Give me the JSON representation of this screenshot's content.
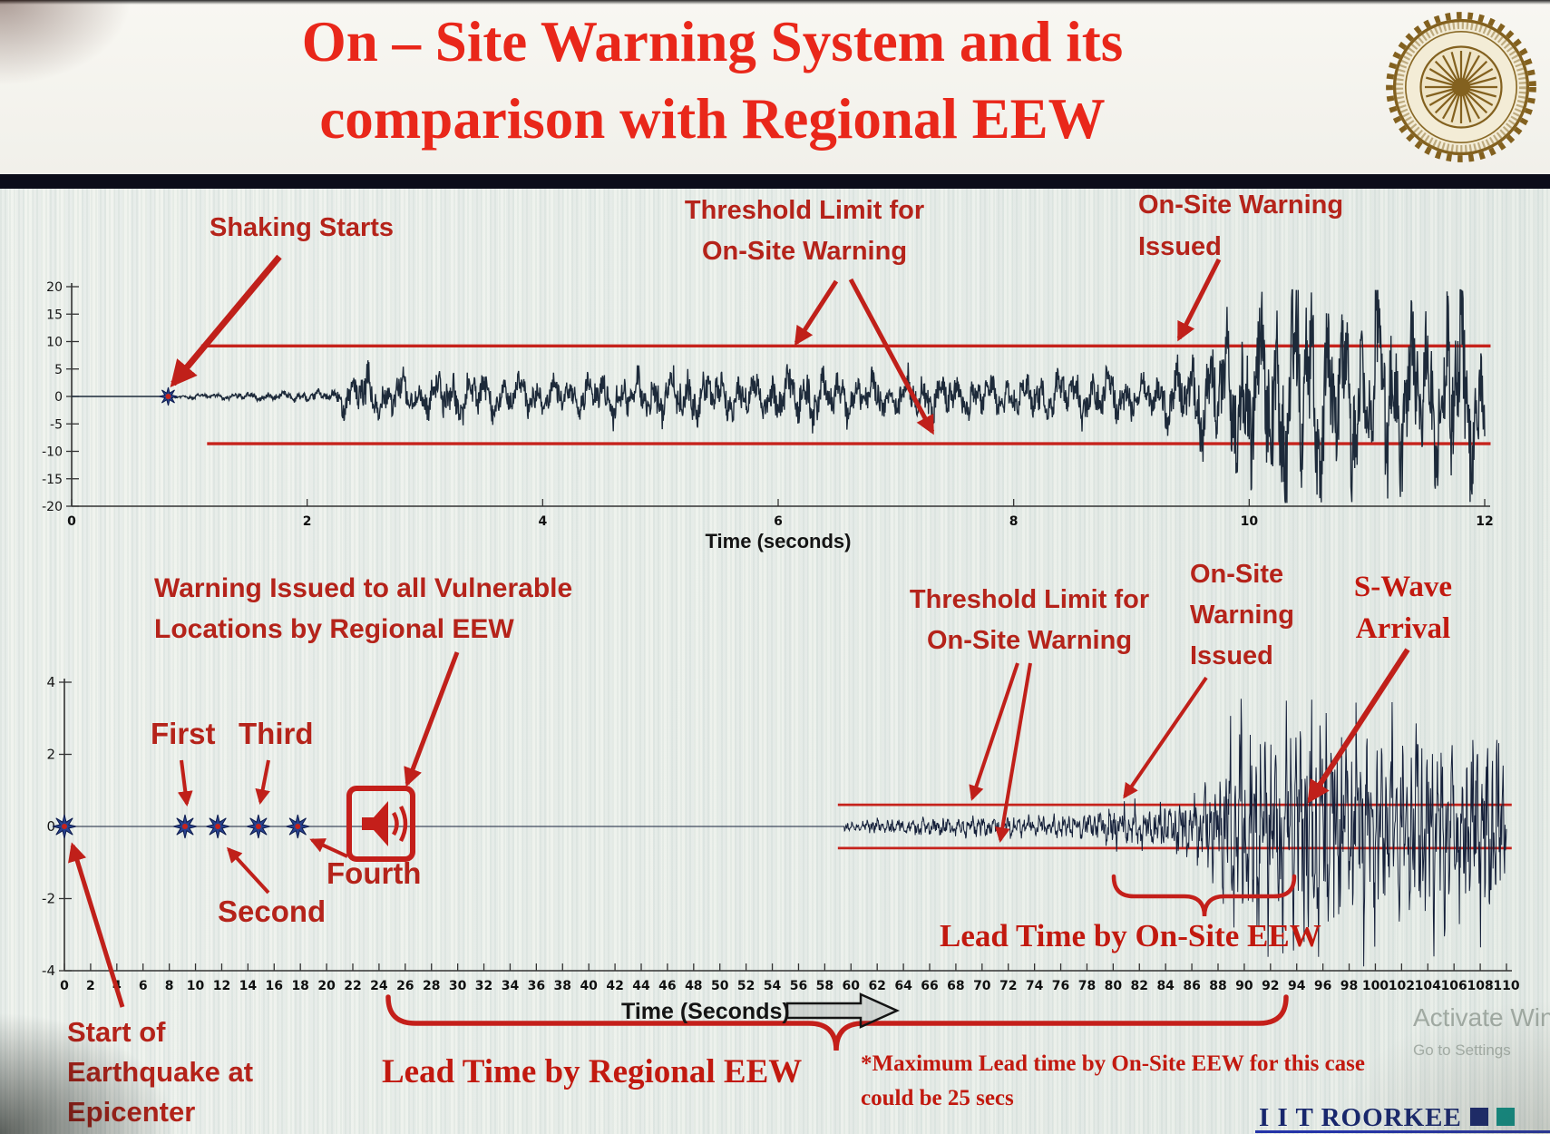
{
  "header": {
    "title_line1": "On – Site Warning System and its",
    "title_line2": "comparison with Regional EEW",
    "logo": "IIT Roorkee circular seal"
  },
  "colors": {
    "title_red": "#e9271a",
    "annotation_red": "#b5231a",
    "serif_red": "#c2190f",
    "threshold_red": "#c6231c",
    "trace_dark": "#1d2a3a",
    "marker_blue": "#26418e",
    "footer_navy": "#18276d",
    "footer_teal": "#0e8f86"
  },
  "top_chart": {
    "xlabel": "Time (seconds)",
    "annotations": {
      "shaking_starts": "Shaking Starts",
      "threshold_line1": "Threshold Limit for",
      "threshold_line2": "On-Site Warning",
      "warning_line1": "On-Site Warning",
      "warning_line2": "Issued"
    }
  },
  "bottom_chart": {
    "xlabel": "Time (Seconds)",
    "annotations": {
      "regional_line1": "Warning Issued to all Vulnerable",
      "regional_line2": "Locations by Regional EEW",
      "first": "First",
      "second": "Second",
      "third": "Third",
      "fourth": "Fourth",
      "threshold_line1": "Threshold Limit for",
      "threshold_line2": "On-Site Warning",
      "onsite_line1": "On-Site",
      "onsite_line2": "Warning",
      "onsite_line3": "Issued",
      "swave_line1": "S-Wave",
      "swave_line2": "Arrival",
      "lead_onsite": "Lead Time by On-Site EEW",
      "lead_regional": "Lead Time by Regional EEW",
      "max_lead_line1": "*Maximum Lead time by On-Site EEW for this case",
      "max_lead_line2": "could be 25 secs",
      "epicenter_line1": "Start of",
      "epicenter_line2": "Earthquake at",
      "epicenter_line3": "Epicenter"
    }
  },
  "footer": {
    "brand": "I I T ROORKEE",
    "watermark_line1": "Activate Win",
    "watermark_line2": "Go to Settings"
  },
  "chart_data": [
    {
      "type": "line",
      "title": "",
      "xlabel": "Time (seconds)",
      "ylabel": "",
      "xlim": [
        0,
        12
      ],
      "ylim": [
        -20,
        20
      ],
      "xticks": [
        0,
        2,
        4,
        6,
        8,
        10,
        12
      ],
      "yticks": [
        20,
        15,
        10,
        5,
        0,
        -5,
        -10,
        -15,
        -20
      ],
      "grid": false,
      "legend": false,
      "series": [
        {
          "name": "ground acceleration",
          "kind": "seismogram",
          "seed": 42,
          "base_freq": 7,
          "start_t": 0.82,
          "end_t": 12,
          "envelope": [
            [
              0.82,
              0.3
            ],
            [
              1.6,
              0.7
            ],
            [
              2.2,
              1.0
            ],
            [
              2.45,
              4.8
            ],
            [
              2.9,
              3.2
            ],
            [
              3.4,
              4.2
            ],
            [
              4.0,
              3.0
            ],
            [
              4.6,
              4.0
            ],
            [
              5.2,
              4.6
            ],
            [
              5.8,
              3.2
            ],
            [
              6.2,
              4.8
            ],
            [
              6.8,
              3.4
            ],
            [
              7.3,
              4.2
            ],
            [
              7.8,
              3.0
            ],
            [
              8.3,
              3.8
            ],
            [
              8.8,
              4.4
            ],
            [
              9.1,
              3.2
            ],
            [
              9.35,
              5.5
            ],
            [
              9.6,
              8.0
            ],
            [
              9.9,
              12.0
            ],
            [
              10.2,
              16.0
            ],
            [
              10.5,
              18.0
            ],
            [
              10.8,
              13.0
            ],
            [
              11.1,
              16.5
            ],
            [
              11.4,
              12.0
            ],
            [
              11.7,
              17.0
            ],
            [
              12,
              15.0
            ]
          ]
        },
        {
          "name": "upper threshold",
          "kind": "hline",
          "y": 9.2,
          "x_start": 1.1,
          "x_end": 12.05
        },
        {
          "name": "lower threshold",
          "kind": "hline",
          "y": -8.6,
          "x_start": 1.15,
          "x_end": 12.05
        }
      ],
      "events": {
        "shaking_starts_t": 0.82,
        "onsite_warning_issued_t": 9.3
      }
    },
    {
      "type": "line",
      "title": "",
      "xlabel": "Time (Seconds)",
      "ylabel": "",
      "xlim": [
        0,
        110
      ],
      "ylim": [
        -4,
        4
      ],
      "xtick_step": 2,
      "yticks": [
        4,
        2,
        0,
        -2,
        -4
      ],
      "grid": false,
      "legend": false,
      "series": [
        {
          "name": "ground acceleration",
          "kind": "seismogram",
          "seed": 7,
          "base_freq": 2.6,
          "start_t": 59.5,
          "end_t": 110,
          "envelope": [
            [
              59.5,
              0.1
            ],
            [
              62,
              0.18
            ],
            [
              66,
              0.22
            ],
            [
              70,
              0.25
            ],
            [
              74,
              0.24
            ],
            [
              78,
              0.3
            ],
            [
              80,
              0.45
            ],
            [
              83,
              0.5
            ],
            [
              86,
              0.7
            ],
            [
              88,
              1.2
            ],
            [
              89.5,
              2.6
            ],
            [
              91,
              2.9
            ],
            [
              92.5,
              2.2
            ],
            [
              94,
              2.7
            ],
            [
              96,
              3.1
            ],
            [
              98,
              2.3
            ],
            [
              100,
              2.7
            ],
            [
              102,
              2.1
            ],
            [
              104,
              2.5
            ],
            [
              106,
              1.9
            ],
            [
              108,
              2.2
            ],
            [
              110,
              1.8
            ]
          ]
        },
        {
          "name": "upper threshold",
          "kind": "hline",
          "y": 0.6,
          "x_start": 59,
          "x_end": 110.4
        },
        {
          "name": "lower threshold",
          "kind": "hline",
          "y": -0.6,
          "x_start": 59,
          "x_end": 110.4
        }
      ],
      "events": {
        "epicenter_t": 0,
        "p_detections_t": [
          9.2,
          11.7,
          14.8,
          17.8
        ],
        "regional_warning_t": 24,
        "onsite_warning_t": 80,
        "swave_arrival_t": 93,
        "max_onsite_lead_time": "25 secs"
      }
    }
  ]
}
